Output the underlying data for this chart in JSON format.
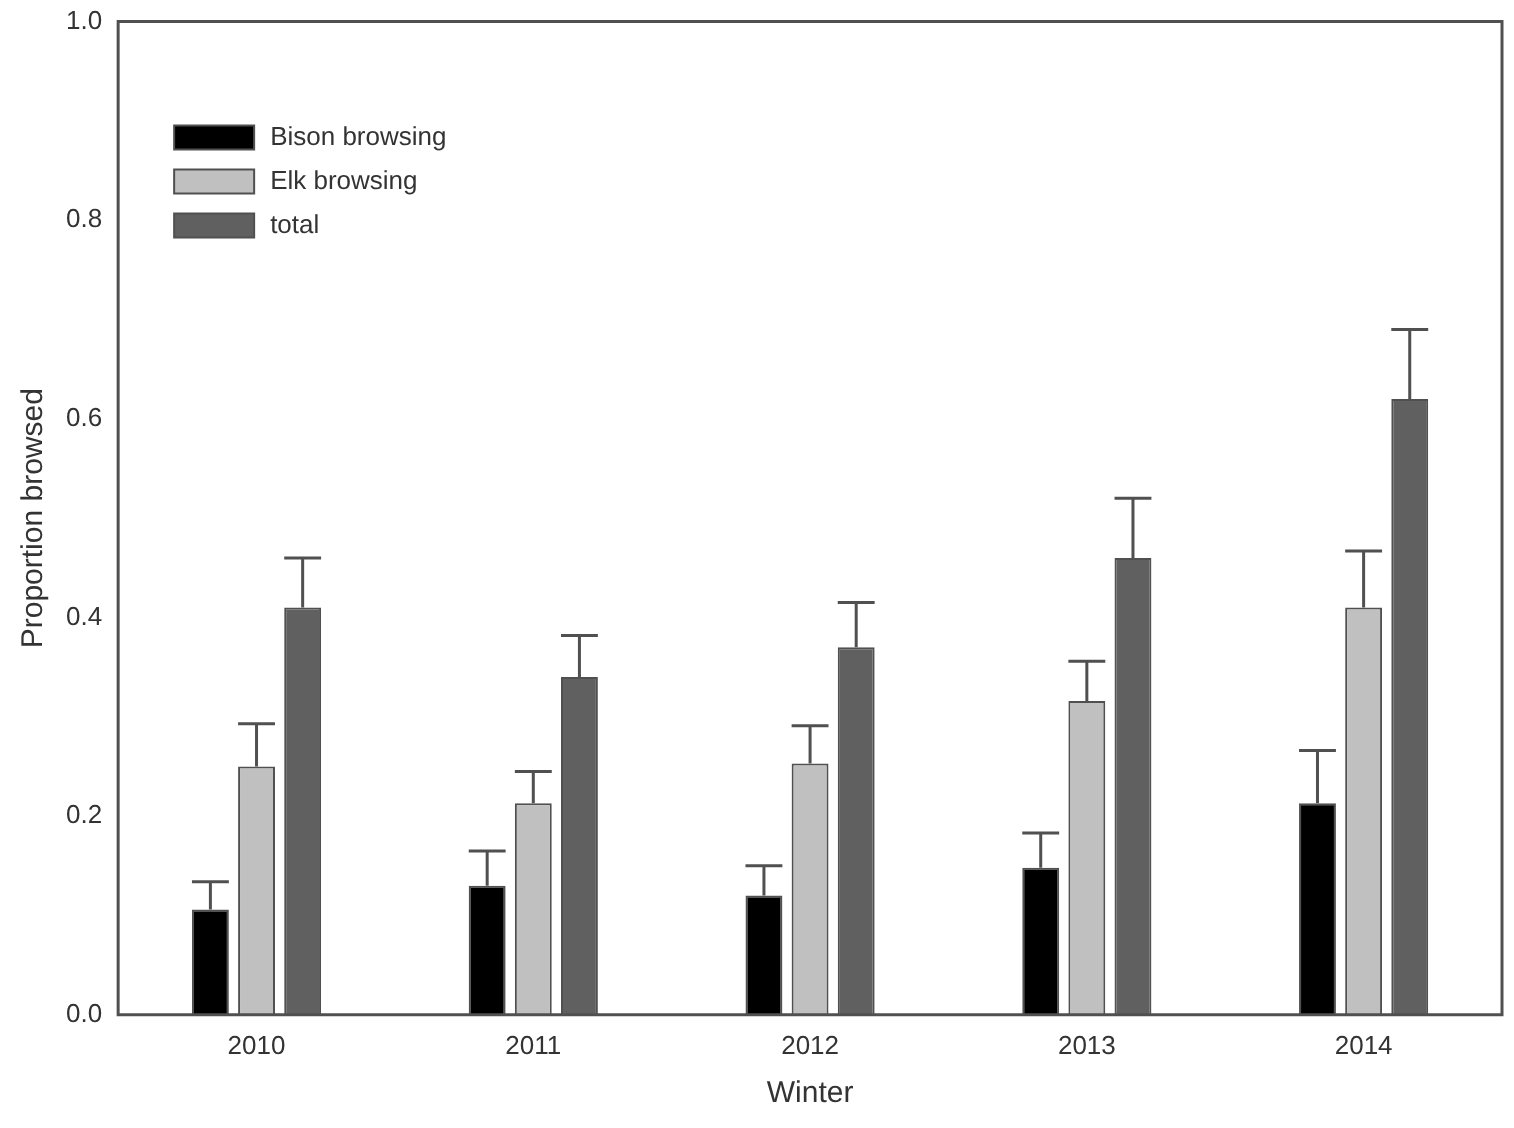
{
  "chart_data": {
    "type": "bar",
    "xlabel": "Winter",
    "ylabel": "Proportion browsed",
    "categories": [
      "2010",
      "2011",
      "2012",
      "2013",
      "2014"
    ],
    "series": [
      {
        "name": "Bison browsing",
        "color": "#000000",
        "values": [
          0.106,
          0.13,
          0.12,
          0.148,
          0.213
        ],
        "errors": [
          [
            0.106,
            0.134
          ],
          [
            0.13,
            0.165
          ],
          [
            0.12,
            0.15
          ],
          [
            0.148,
            0.183
          ],
          [
            0.213,
            0.266
          ]
        ]
      },
      {
        "name": "Elk browsing",
        "color": "#c0c0c0",
        "values": [
          0.25,
          0.213,
          0.253,
          0.316,
          0.41
        ],
        "errors": [
          [
            0.25,
            0.293
          ],
          [
            0.213,
            0.245
          ],
          [
            0.253,
            0.291
          ],
          [
            0.316,
            0.356
          ],
          [
            0.41,
            0.467
          ]
        ]
      },
      {
        "name": "total",
        "color": "#606060",
        "values": [
          0.41,
          0.34,
          0.37,
          0.46,
          0.62
        ],
        "errors": [
          [
            0.41,
            0.46
          ],
          [
            0.34,
            0.382
          ],
          [
            0.37,
            0.415
          ],
          [
            0.46,
            0.52
          ],
          [
            0.62,
            0.69
          ]
        ]
      }
    ],
    "ylim": [
      0,
      1.0
    ],
    "yticks": [
      {
        "value": 0,
        "label": "0.0"
      },
      {
        "value": 0.2,
        "label": "0.2"
      },
      {
        "value": 0.4,
        "label": "0.4"
      },
      {
        "value": 0.6,
        "label": "0.6"
      },
      {
        "value": 0.8,
        "label": "0.8"
      },
      {
        "value": 1.0,
        "label": "1.0"
      }
    ],
    "grid": false,
    "legend": "top left"
  }
}
